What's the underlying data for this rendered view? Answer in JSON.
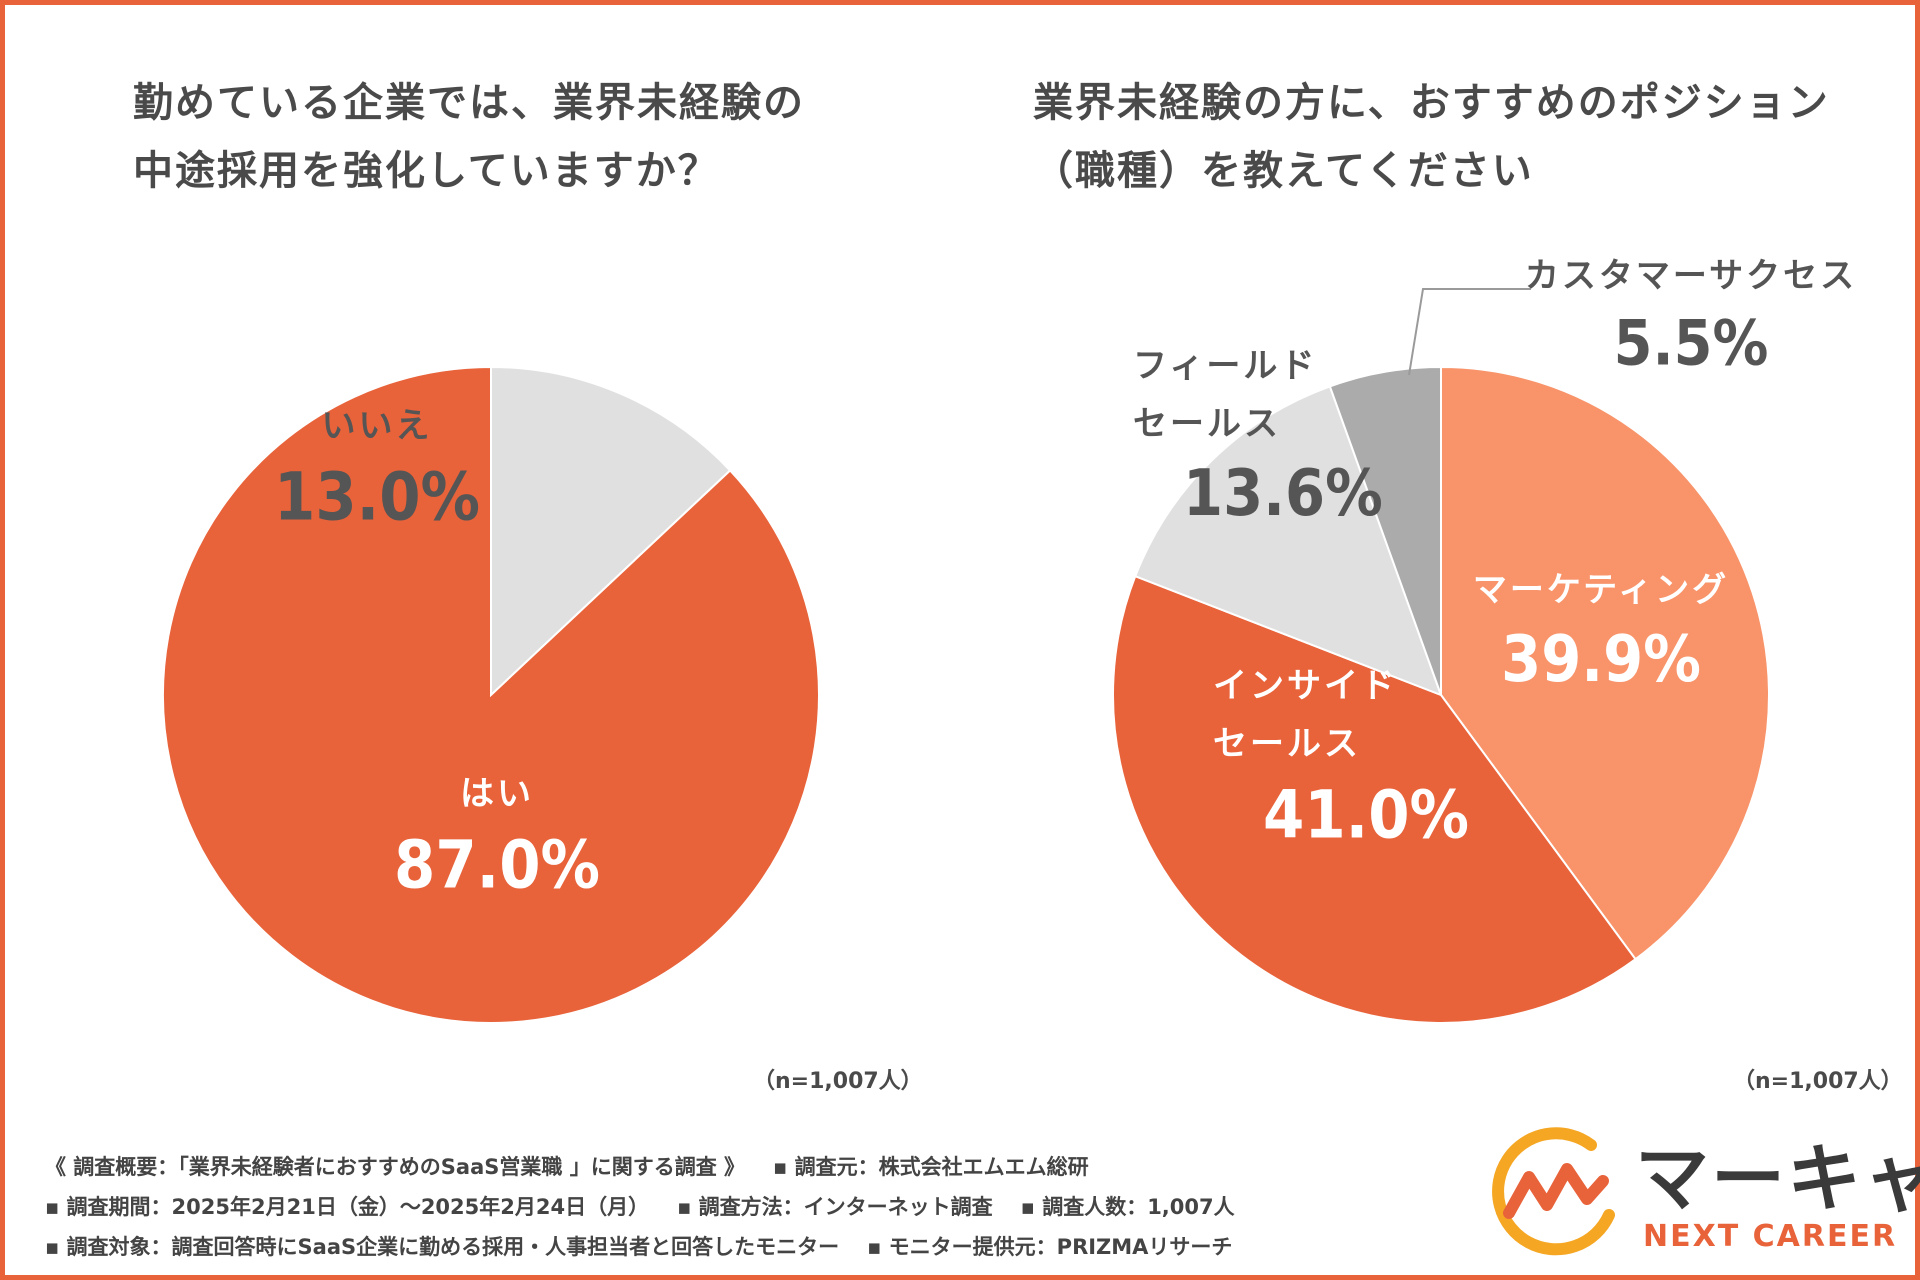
{
  "colors": {
    "accent": "#E8623A",
    "light_orange": "#F8936A",
    "light_gray": "#E0E0E0",
    "mid_gray": "#ABABAB",
    "text_dark": "#555555",
    "text_white": "#FFFFFF"
  },
  "chart_data": [
    {
      "type": "pie",
      "title_lines": [
        "勤めている企業では、業界未経験の",
        "中途採用を強化していますか？"
      ],
      "slices": [
        {
          "label_lines": [
            "いいえ"
          ],
          "value": 13.0,
          "display": "13.0%",
          "color": "#E0E0E0",
          "text_color": "#555555"
        },
        {
          "label_lines": [
            "はい"
          ],
          "value": 87.0,
          "display": "87.0%",
          "color": "#E8623A",
          "text_color": "#FFFFFF"
        }
      ],
      "note": "（n=1,007人）"
    },
    {
      "type": "pie",
      "title_lines": [
        "業界未経験の方に、おすすめのポジション",
        "（職種）を教えてください"
      ],
      "slices": [
        {
          "label_lines": [
            "マーケティング"
          ],
          "value": 39.9,
          "display": "39.9%",
          "color": "#F8936A",
          "text_color": "#FFFFFF"
        },
        {
          "label_lines": [
            "インサイド",
            "セールス"
          ],
          "value": 41.0,
          "display": "41.0%",
          "color": "#E8623A",
          "text_color": "#FFFFFF"
        },
        {
          "label_lines": [
            "フィールド",
            "セールス"
          ],
          "value": 13.6,
          "display": "13.6%",
          "color": "#E0E0E0",
          "text_color": "#555555"
        },
        {
          "label_lines": [
            "カスタマーサクセス"
          ],
          "value": 5.5,
          "display": "5.5%",
          "color": "#ABABAB",
          "text_color": "#555555"
        }
      ],
      "note": "（n=1,007人）"
    }
  ],
  "footer": {
    "line1_a": "《 調査概要：「業界未経験者におすすめのSaaS営業職 」に関する調査 》",
    "line1_b": "▪ 調査元：株式会社エムエム総研",
    "line2_a": "▪ 調査期間：2025年2月21日（金）〜2025年2月24日（月）",
    "line2_b": "▪ 調査方法：インターネット調査",
    "line2_c": "▪ 調査人数：1,007人",
    "line3_a": "▪ 調査対象：調査回答時にSaaS企業に勤める採用・人事担当者と回答したモニター",
    "line3_b": "▪ モニター提供元：PRIZMAリサーチ"
  },
  "logo": {
    "name": "マーキャリ",
    "tagline": "NEXT CAREER"
  }
}
